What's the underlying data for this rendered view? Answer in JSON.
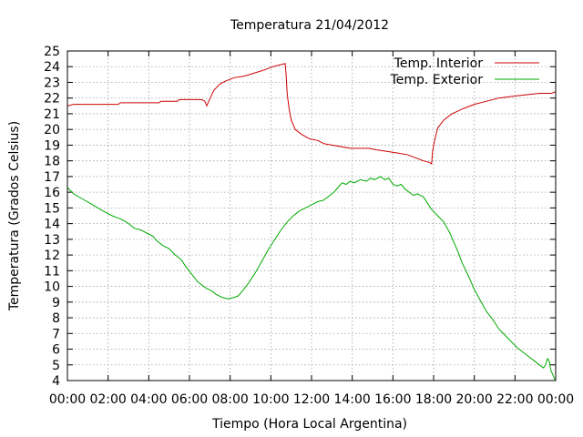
{
  "chart_data": {
    "type": "line",
    "title": "Temperatura 21/04/2012",
    "xlabel": "Tiempo (Hora Local Argentina)",
    "ylabel": "Temperatura (Grados Celsius)",
    "xlim": [
      0,
      24
    ],
    "ylim": [
      4,
      25
    ],
    "x_ticks": [
      "00:00",
      "02:00",
      "04:00",
      "06:00",
      "08:00",
      "10:00",
      "12:00",
      "14:00",
      "16:00",
      "18:00",
      "20:00",
      "22:00",
      "00:00"
    ],
    "y_ticks": [
      4,
      5,
      6,
      7,
      8,
      9,
      10,
      11,
      12,
      13,
      14,
      15,
      16,
      17,
      18,
      19,
      20,
      21,
      22,
      23,
      24,
      25
    ],
    "grid": true,
    "legend_position": "top-right",
    "series": [
      {
        "name": "Temp. Interior",
        "color": "#cc0000",
        "points": [
          [
            0.0,
            21.5
          ],
          [
            0.3,
            21.6
          ],
          [
            1.0,
            21.6
          ],
          [
            2.0,
            21.6
          ],
          [
            2.5,
            21.6
          ],
          [
            2.6,
            21.7
          ],
          [
            3.5,
            21.7
          ],
          [
            4.5,
            21.7
          ],
          [
            4.6,
            21.8
          ],
          [
            5.4,
            21.8
          ],
          [
            5.5,
            21.9
          ],
          [
            6.6,
            21.9
          ],
          [
            6.75,
            21.8
          ],
          [
            6.85,
            21.5
          ],
          [
            6.95,
            21.8
          ],
          [
            7.2,
            22.5
          ],
          [
            7.5,
            22.9
          ],
          [
            7.8,
            23.1
          ],
          [
            8.2,
            23.3
          ],
          [
            8.7,
            23.4
          ],
          [
            9.2,
            23.6
          ],
          [
            9.7,
            23.8
          ],
          [
            10.1,
            24.0
          ],
          [
            10.4,
            24.1
          ],
          [
            10.7,
            24.2
          ],
          [
            10.75,
            23.5
          ],
          [
            10.8,
            22.3
          ],
          [
            10.9,
            21.3
          ],
          [
            11.0,
            20.6
          ],
          [
            11.2,
            20.0
          ],
          [
            11.5,
            19.7
          ],
          [
            11.9,
            19.4
          ],
          [
            12.3,
            19.3
          ],
          [
            12.6,
            19.1
          ],
          [
            13.0,
            19.0
          ],
          [
            13.5,
            18.9
          ],
          [
            13.9,
            18.8
          ],
          [
            14.4,
            18.8
          ],
          [
            14.8,
            18.8
          ],
          [
            15.2,
            18.7
          ],
          [
            15.7,
            18.6
          ],
          [
            16.2,
            18.5
          ],
          [
            16.7,
            18.4
          ],
          [
            17.1,
            18.2
          ],
          [
            17.5,
            18.0
          ],
          [
            17.8,
            17.9
          ],
          [
            17.9,
            17.8
          ],
          [
            17.95,
            18.6
          ],
          [
            18.05,
            19.3
          ],
          [
            18.2,
            20.1
          ],
          [
            18.5,
            20.6
          ],
          [
            18.9,
            21.0
          ],
          [
            19.4,
            21.3
          ],
          [
            20.0,
            21.6
          ],
          [
            20.6,
            21.8
          ],
          [
            21.2,
            22.0
          ],
          [
            21.8,
            22.1
          ],
          [
            22.5,
            22.2
          ],
          [
            23.2,
            22.3
          ],
          [
            23.8,
            22.3
          ],
          [
            24.0,
            22.4
          ]
        ]
      },
      {
        "name": "Temp. Exterior",
        "color": "#00aa00",
        "points": [
          [
            0.0,
            16.3
          ],
          [
            0.3,
            15.9
          ],
          [
            0.7,
            15.6
          ],
          [
            1.1,
            15.3
          ],
          [
            1.5,
            15.0
          ],
          [
            1.9,
            14.7
          ],
          [
            2.2,
            14.5
          ],
          [
            2.6,
            14.3
          ],
          [
            2.9,
            14.1
          ],
          [
            3.3,
            13.7
          ],
          [
            3.6,
            13.6
          ],
          [
            3.9,
            13.4
          ],
          [
            4.2,
            13.2
          ],
          [
            4.4,
            12.9
          ],
          [
            4.7,
            12.6
          ],
          [
            5.0,
            12.4
          ],
          [
            5.3,
            12.0
          ],
          [
            5.6,
            11.7
          ],
          [
            5.8,
            11.3
          ],
          [
            6.1,
            10.8
          ],
          [
            6.4,
            10.3
          ],
          [
            6.8,
            9.9
          ],
          [
            7.1,
            9.7
          ],
          [
            7.3,
            9.5
          ],
          [
            7.6,
            9.3
          ],
          [
            7.9,
            9.2
          ],
          [
            8.2,
            9.3
          ],
          [
            8.4,
            9.4
          ],
          [
            8.6,
            9.7
          ],
          [
            8.9,
            10.2
          ],
          [
            9.1,
            10.6
          ],
          [
            9.3,
            11.0
          ],
          [
            9.6,
            11.7
          ],
          [
            9.9,
            12.4
          ],
          [
            10.2,
            13.0
          ],
          [
            10.5,
            13.6
          ],
          [
            10.8,
            14.1
          ],
          [
            11.1,
            14.5
          ],
          [
            11.4,
            14.8
          ],
          [
            11.7,
            15.0
          ],
          [
            12.0,
            15.2
          ],
          [
            12.3,
            15.4
          ],
          [
            12.6,
            15.5
          ],
          [
            12.9,
            15.8
          ],
          [
            13.1,
            16.0
          ],
          [
            13.3,
            16.3
          ],
          [
            13.5,
            16.6
          ],
          [
            13.7,
            16.5
          ],
          [
            13.9,
            16.7
          ],
          [
            14.1,
            16.6
          ],
          [
            14.4,
            16.8
          ],
          [
            14.7,
            16.7
          ],
          [
            14.9,
            16.9
          ],
          [
            15.1,
            16.8
          ],
          [
            15.4,
            17.0
          ],
          [
            15.6,
            16.8
          ],
          [
            15.8,
            16.9
          ],
          [
            16.0,
            16.5
          ],
          [
            16.2,
            16.4
          ],
          [
            16.4,
            16.5
          ],
          [
            16.6,
            16.2
          ],
          [
            16.8,
            16.0
          ],
          [
            17.0,
            15.8
          ],
          [
            17.2,
            15.9
          ],
          [
            17.5,
            15.7
          ],
          [
            17.7,
            15.3
          ],
          [
            17.9,
            14.9
          ],
          [
            18.2,
            14.5
          ],
          [
            18.5,
            14.1
          ],
          [
            18.8,
            13.4
          ],
          [
            19.0,
            12.8
          ],
          [
            19.2,
            12.2
          ],
          [
            19.4,
            11.5
          ],
          [
            19.7,
            10.7
          ],
          [
            20.0,
            9.8
          ],
          [
            20.3,
            9.1
          ],
          [
            20.6,
            8.4
          ],
          [
            20.9,
            7.9
          ],
          [
            21.2,
            7.3
          ],
          [
            21.5,
            6.9
          ],
          [
            21.8,
            6.5
          ],
          [
            22.1,
            6.1
          ],
          [
            22.4,
            5.8
          ],
          [
            22.7,
            5.5
          ],
          [
            23.0,
            5.2
          ],
          [
            23.2,
            5.0
          ],
          [
            23.4,
            4.8
          ],
          [
            23.5,
            5.0
          ],
          [
            23.6,
            5.4
          ],
          [
            23.7,
            5.2
          ],
          [
            23.75,
            4.7
          ],
          [
            23.85,
            4.4
          ],
          [
            23.95,
            4.1
          ],
          [
            24.0,
            4.0
          ]
        ]
      }
    ]
  }
}
